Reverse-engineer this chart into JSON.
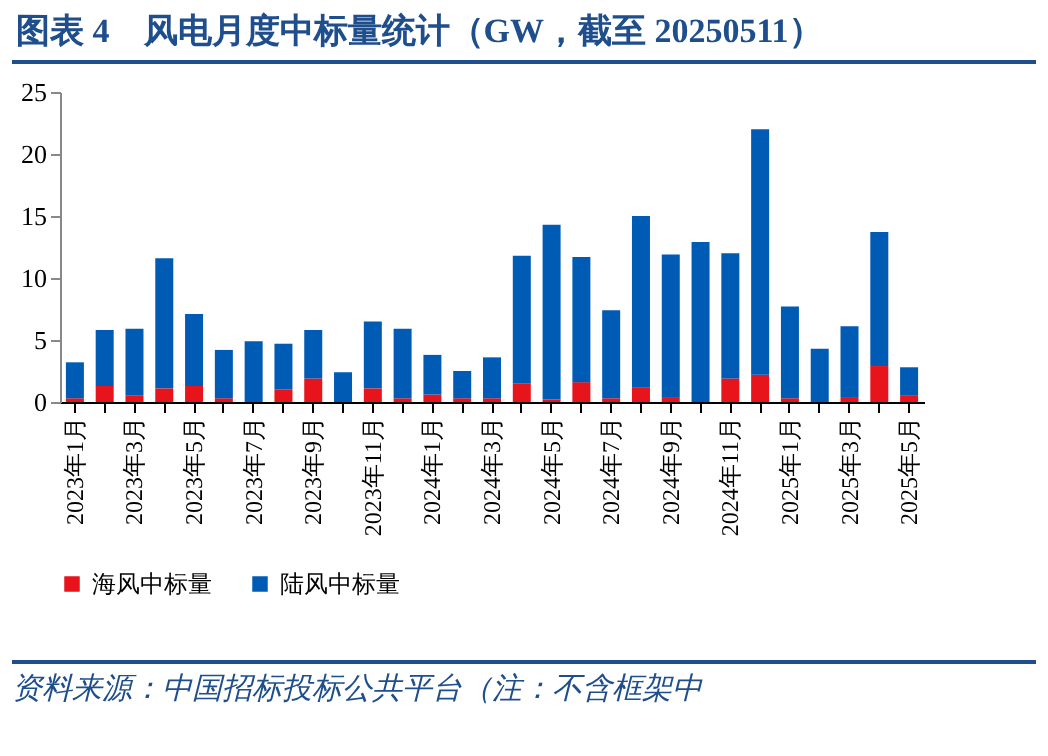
{
  "chart_data": {
    "type": "bar",
    "title": "图表 4　风电月度中标量统计（GW，截至 20250511）",
    "categories": [
      "2023年1月",
      null,
      "2023年3月",
      null,
      "2023年5月",
      null,
      "2023年7月",
      null,
      "2023年9月",
      null,
      "2023年11月",
      null,
      "2024年1月",
      null,
      "2024年3月",
      null,
      "2024年5月",
      null,
      "2024年7月",
      null,
      "2024年9月",
      null,
      "2024年11月",
      null,
      "2025年1月",
      null,
      "2025年3月",
      null,
      "2025年5月"
    ],
    "series": [
      {
        "name": "海风中标量",
        "color": "#e8141c",
        "values": [
          0.3,
          1.3,
          0.5,
          1.1,
          1.3,
          0.3,
          0,
          1.0,
          1.9,
          0,
          1.1,
          0.3,
          0.6,
          0.3,
          0.3,
          1.5,
          0.2,
          1.6,
          0.3,
          1.2,
          0.4,
          0,
          1.9,
          2.2,
          0.3,
          0,
          0.4,
          2.9,
          0.5
        ]
      },
      {
        "name": "陆风中标量",
        "color": "#005bb5",
        "values": [
          2.9,
          4.5,
          5.4,
          10.5,
          5.8,
          3.9,
          4.9,
          3.7,
          3.9,
          2.4,
          5.4,
          5.6,
          3.2,
          2.2,
          3.3,
          10.3,
          14.1,
          10.1,
          7.1,
          13.8,
          11.5,
          12.9,
          10.1,
          19.8,
          7.4,
          4.3,
          5.7,
          10.8,
          2.3
        ]
      }
    ],
    "stacked": true,
    "ylim": [
      0,
      25
    ],
    "yticks": [
      0,
      5,
      10,
      15,
      20,
      25
    ],
    "grid": false,
    "legend": "bottom",
    "annotations": [
      "资料来源：中国招标投标公共平台（注：不含框架中"
    ]
  }
}
